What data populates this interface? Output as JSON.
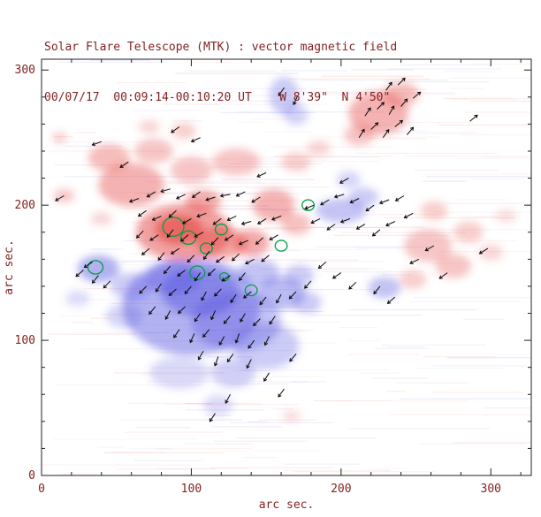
{
  "chart_data": {
    "type": "heatmap",
    "title": "Solar Flare Telescope (MTK) : vector magnetic field",
    "subtitle": "00/07/17  00:09:14-00:10:20 UT    W 8'39\"  N 4'50\"",
    "xlabel": "arc sec.",
    "ylabel": "arc sec.",
    "x_range": [
      0,
      327
    ],
    "y_range": [
      0,
      308
    ],
    "x_ticks": [
      0,
      100,
      200,
      300
    ],
    "y_ticks": [
      0,
      100,
      200,
      300
    ],
    "minor_tick_step": 20,
    "grid": false,
    "legend": "none",
    "polarity_colors": {
      "positive": "#e4413f",
      "negative": "#5552e0",
      "contour": "#00a040",
      "vector": "#0a0a0a",
      "axis": "#222222",
      "background": "#ffffff"
    },
    "text_color": "#832222",
    "regions": {
      "negative_blue": [
        [
          100,
          125,
          46,
          36,
          0.45
        ],
        [
          106,
          136,
          26,
          18,
          0.45
        ],
        [
          88,
          146,
          18,
          12,
          0.4
        ],
        [
          130,
          114,
          30,
          22,
          0.35
        ],
        [
          150,
          96,
          22,
          17,
          0.3
        ],
        [
          128,
          76,
          15,
          11,
          0.28
        ],
        [
          160,
          135,
          16,
          12,
          0.4
        ],
        [
          177,
          128,
          10,
          8,
          0.3
        ],
        [
          38,
          153,
          14,
          10,
          0.45
        ],
        [
          60,
          140,
          14,
          10,
          0.3
        ],
        [
          55,
          118,
          12,
          9,
          0.25
        ],
        [
          200,
          196,
          17,
          9,
          0.35
        ],
        [
          215,
          206,
          10,
          7,
          0.3
        ],
        [
          229,
          139,
          11,
          8,
          0.35
        ],
        [
          162,
          281,
          10,
          14,
          0.3
        ],
        [
          170,
          267,
          8,
          8,
          0.25
        ],
        [
          205,
          219,
          8,
          6,
          0.25
        ],
        [
          92,
          76,
          20,
          12,
          0.22
        ],
        [
          118,
          52,
          10,
          8,
          0.2
        ],
        [
          24,
          131,
          8,
          6,
          0.2
        ],
        [
          145,
          150,
          14,
          10,
          0.35
        ],
        [
          172,
          148,
          10,
          8,
          0.3
        ]
      ],
      "positive_red": [
        [
          95,
          180,
          32,
          21,
          0.5
        ],
        [
          92,
          182,
          16,
          11,
          0.6
        ],
        [
          108,
          203,
          12,
          8,
          0.45
        ],
        [
          120,
          172,
          17,
          12,
          0.45
        ],
        [
          140,
          172,
          12,
          10,
          0.45
        ],
        [
          60,
          215,
          22,
          16,
          0.4
        ],
        [
          45,
          235,
          14,
          10,
          0.35
        ],
        [
          75,
          240,
          13,
          9,
          0.3
        ],
        [
          100,
          226,
          14,
          10,
          0.3
        ],
        [
          130,
          232,
          16,
          10,
          0.3
        ],
        [
          155,
          200,
          14,
          12,
          0.4
        ],
        [
          170,
          186,
          10,
          8,
          0.32
        ],
        [
          225,
          268,
          20,
          16,
          0.4
        ],
        [
          240,
          282,
          12,
          9,
          0.35
        ],
        [
          212,
          252,
          10,
          8,
          0.3
        ],
        [
          258,
          170,
          16,
          12,
          0.3
        ],
        [
          275,
          155,
          12,
          9,
          0.3
        ],
        [
          285,
          180,
          10,
          8,
          0.26
        ],
        [
          262,
          196,
          9,
          7,
          0.26
        ],
        [
          248,
          145,
          9,
          7,
          0.26
        ],
        [
          15,
          207,
          7,
          5,
          0.3
        ],
        [
          12,
          250,
          5,
          4,
          0.25
        ],
        [
          40,
          190,
          7,
          5,
          0.22
        ],
        [
          170,
          232,
          10,
          7,
          0.26
        ],
        [
          185,
          242,
          8,
          6,
          0.22
        ],
        [
          300,
          165,
          8,
          6,
          0.22
        ],
        [
          310,
          192,
          7,
          5,
          0.18
        ],
        [
          167,
          44,
          6,
          4,
          0.2
        ],
        [
          95,
          255,
          8,
          6,
          0.26
        ],
        [
          72,
          258,
          7,
          5,
          0.22
        ]
      ]
    },
    "contours": [
      [
        36,
        154,
        5
      ],
      [
        88,
        184,
        7
      ],
      [
        98,
        176,
        5
      ],
      [
        110,
        168,
        4
      ],
      [
        120,
        182,
        4
      ],
      [
        104,
        150,
        5
      ],
      [
        122,
        147,
        3
      ],
      [
        140,
        137,
        4
      ],
      [
        160,
        170,
        4
      ],
      [
        178,
        200,
        4
      ]
    ],
    "vectors": [
      [
        65,
        205,
        200
      ],
      [
        76,
        210,
        212
      ],
      [
        86,
        212,
        196
      ],
      [
        96,
        208,
        206
      ],
      [
        106,
        210,
        216
      ],
      [
        116,
        206,
        198
      ],
      [
        126,
        208,
        190
      ],
      [
        136,
        210,
        206
      ],
      [
        146,
        206,
        212
      ],
      [
        70,
        196,
        215
      ],
      [
        80,
        192,
        204
      ],
      [
        90,
        196,
        222
      ],
      [
        100,
        190,
        210
      ],
      [
        110,
        194,
        200
      ],
      [
        120,
        190,
        216
      ],
      [
        130,
        192,
        206
      ],
      [
        140,
        188,
        196
      ],
      [
        150,
        190,
        212
      ],
      [
        160,
        192,
        202
      ],
      [
        68,
        181,
        226
      ],
      [
        78,
        178,
        214
      ],
      [
        88,
        182,
        232
      ],
      [
        98,
        178,
        220
      ],
      [
        108,
        180,
        208
      ],
      [
        118,
        176,
        226
      ],
      [
        128,
        178,
        214
      ],
      [
        138,
        174,
        204
      ],
      [
        148,
        176,
        222
      ],
      [
        158,
        178,
        210
      ],
      [
        72,
        168,
        221
      ],
      [
        82,
        165,
        232
      ],
      [
        92,
        168,
        214
      ],
      [
        102,
        163,
        226
      ],
      [
        112,
        166,
        236
      ],
      [
        122,
        162,
        216
      ],
      [
        132,
        164,
        224
      ],
      [
        142,
        160,
        208
      ],
      [
        152,
        163,
        220
      ],
      [
        86,
        155,
        230
      ],
      [
        96,
        152,
        218
      ],
      [
        106,
        150,
        236
      ],
      [
        116,
        153,
        224
      ],
      [
        126,
        148,
        214
      ],
      [
        136,
        150,
        232
      ],
      [
        70,
        140,
        226
      ],
      [
        80,
        142,
        236
      ],
      [
        90,
        138,
        222
      ],
      [
        100,
        140,
        230
      ],
      [
        110,
        136,
        242
      ],
      [
        120,
        138,
        226
      ],
      [
        130,
        134,
        236
      ],
      [
        140,
        136,
        220
      ],
      [
        150,
        132,
        230
      ],
      [
        160,
        134,
        242
      ],
      [
        170,
        136,
        226
      ],
      [
        76,
        125,
        231
      ],
      [
        86,
        122,
        241
      ],
      [
        96,
        125,
        224
      ],
      [
        106,
        120,
        236
      ],
      [
        116,
        122,
        246
      ],
      [
        126,
        118,
        230
      ],
      [
        136,
        120,
        240
      ],
      [
        146,
        116,
        226
      ],
      [
        156,
        118,
        236
      ],
      [
        92,
        108,
        236
      ],
      [
        102,
        105,
        246
      ],
      [
        112,
        108,
        230
      ],
      [
        122,
        103,
        241
      ],
      [
        132,
        105,
        250
      ],
      [
        142,
        100,
        234
      ],
      [
        152,
        103,
        244
      ],
      [
        108,
        92,
        240
      ],
      [
        118,
        88,
        250
      ],
      [
        128,
        90,
        234
      ],
      [
        140,
        86,
        244
      ],
      [
        152,
        76,
        238
      ],
      [
        162,
        64,
        234
      ],
      [
        126,
        60,
        242
      ],
      [
        116,
        46,
        236
      ],
      [
        170,
        90,
        230
      ],
      [
        28,
        152,
        221
      ],
      [
        38,
        148,
        231
      ],
      [
        34,
        158,
        214
      ],
      [
        46,
        144,
        226
      ],
      [
        182,
        200,
        201
      ],
      [
        192,
        204,
        211
      ],
      [
        202,
        208,
        196
      ],
      [
        212,
        205,
        206
      ],
      [
        222,
        200,
        216
      ],
      [
        232,
        204,
        201
      ],
      [
        242,
        207,
        211
      ],
      [
        186,
        190,
        206
      ],
      [
        196,
        186,
        216
      ],
      [
        206,
        190,
        201
      ],
      [
        216,
        186,
        211
      ],
      [
        226,
        182,
        221
      ],
      [
        236,
        188,
        206
      ],
      [
        248,
        194,
        208
      ],
      [
        212,
        250,
        58
      ],
      [
        220,
        256,
        44
      ],
      [
        228,
        250,
        54
      ],
      [
        236,
        258,
        40
      ],
      [
        244,
        252,
        50
      ],
      [
        216,
        266,
        56
      ],
      [
        224,
        271,
        44
      ],
      [
        232,
        267,
        60
      ],
      [
        240,
        273,
        50
      ],
      [
        248,
        279,
        40
      ],
      [
        230,
        285,
        54
      ],
      [
        238,
        289,
        44
      ],
      [
        15,
        207,
        210
      ],
      [
        40,
        247,
        200
      ],
      [
        58,
        232,
        214
      ],
      [
        150,
        224,
        204
      ],
      [
        262,
        170,
        210
      ],
      [
        271,
        150,
        216
      ],
      [
        286,
        262,
        40
      ],
      [
        190,
        158,
        220
      ],
      [
        200,
        150,
        214
      ],
      [
        210,
        143,
        224
      ],
      [
        226,
        140,
        231
      ],
      [
        236,
        132,
        221
      ],
      [
        180,
        144,
        229
      ],
      [
        162,
        287,
        236
      ],
      [
        171,
        281,
        246
      ],
      [
        205,
        220,
        210
      ],
      [
        252,
        160,
        206
      ],
      [
        298,
        168,
        212
      ],
      [
        106,
        250,
        205
      ],
      [
        92,
        258,
        215
      ]
    ]
  }
}
